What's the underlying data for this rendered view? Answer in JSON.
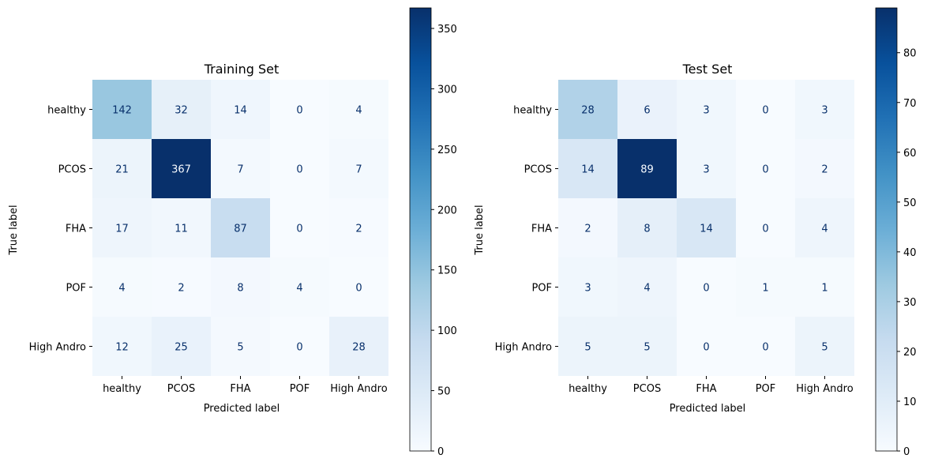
{
  "chart_data": [
    {
      "type": "heatmap",
      "title": "Training Set",
      "xlabel": "Predicted label",
      "ylabel": "True label",
      "x_categories": [
        "healthy",
        "PCOS",
        "FHA",
        "POF",
        "High Andro"
      ],
      "y_categories": [
        "healthy",
        "PCOS",
        "FHA",
        "POF",
        "High Andro"
      ],
      "values": [
        [
          142,
          32,
          14,
          0,
          4
        ],
        [
          21,
          367,
          7,
          0,
          7
        ],
        [
          17,
          11,
          87,
          0,
          2
        ],
        [
          4,
          2,
          8,
          4,
          0
        ],
        [
          12,
          25,
          5,
          0,
          28
        ]
      ],
      "colormap": "Blues",
      "vmin": 0,
      "vmax": 367,
      "colorbar_ticks": [
        0,
        50,
        100,
        150,
        200,
        250,
        300,
        350
      ],
      "grid": false
    },
    {
      "type": "heatmap",
      "title": "Test Set",
      "xlabel": "Predicted label",
      "ylabel": "True label",
      "x_categories": [
        "healthy",
        "PCOS",
        "FHA",
        "POF",
        "High Andro"
      ],
      "y_categories": [
        "healthy",
        "PCOS",
        "FHA",
        "POF",
        "High Andro"
      ],
      "values": [
        [
          28,
          6,
          3,
          0,
          3
        ],
        [
          14,
          89,
          3,
          0,
          2
        ],
        [
          2,
          8,
          14,
          0,
          4
        ],
        [
          3,
          4,
          0,
          1,
          1
        ],
        [
          5,
          5,
          0,
          0,
          5
        ]
      ],
      "colormap": "Blues",
      "vmin": 0,
      "vmax": 89,
      "colorbar_ticks": [
        0,
        10,
        20,
        30,
        40,
        50,
        60,
        70,
        80
      ],
      "grid": false
    }
  ],
  "colors": {
    "low": "#f7fbff",
    "high": "#08306b",
    "text_on_dark": "#f7fbff",
    "text_on_light": "#08306b"
  }
}
